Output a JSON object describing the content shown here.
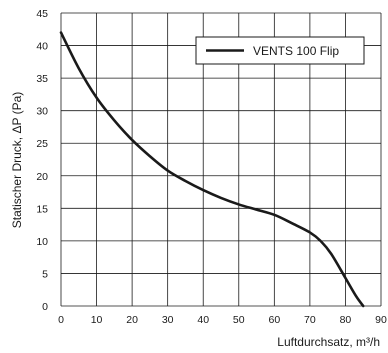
{
  "chart_data": {
    "type": "line",
    "xlabel": "Luftdurchsatz, m³/h",
    "ylabel": "Statischer Druck, ΔP (Pa)",
    "xlim": [
      0,
      90
    ],
    "ylim": [
      0,
      45
    ],
    "x_ticks": [
      0,
      10,
      20,
      30,
      40,
      50,
      60,
      70,
      80,
      90
    ],
    "y_ticks": [
      0,
      5,
      10,
      15,
      20,
      25,
      30,
      35,
      40,
      45
    ],
    "grid": true,
    "legend_position": "top-right",
    "series": [
      {
        "name": "VENTS 100 Flip",
        "color": "#1a1a1a",
        "x": [
          0,
          5,
          10,
          15,
          20,
          25,
          30,
          35,
          40,
          45,
          50,
          55,
          60,
          65,
          70,
          73,
          76,
          80,
          83,
          85
        ],
        "y": [
          42,
          36.5,
          32,
          28.5,
          25.5,
          23,
          20.8,
          19.2,
          17.8,
          16.6,
          15.6,
          14.8,
          14.0,
          12.7,
          11.3,
          10.0,
          8.0,
          4.3,
          1.5,
          0
        ]
      }
    ]
  }
}
